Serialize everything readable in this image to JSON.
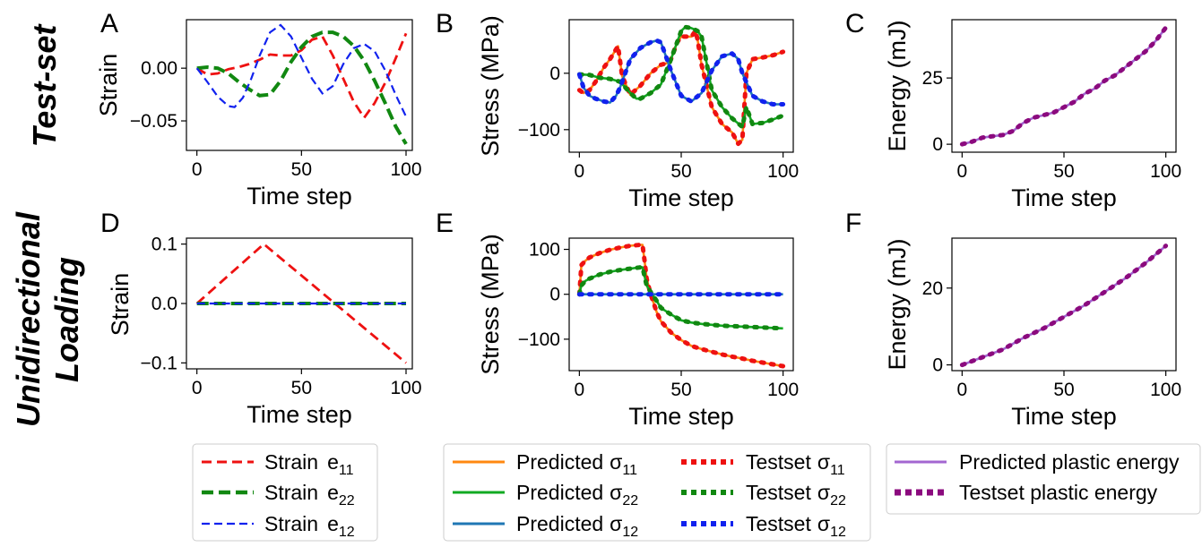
{
  "row_labels": {
    "top": "Test-set",
    "bottom_line1": "Unidirectional",
    "bottom_line2": "Loading"
  },
  "panel_letters": [
    "A",
    "B",
    "C",
    "D",
    "E",
    "F"
  ],
  "legends": {
    "strain": [
      {
        "label": "Strain",
        "symbol": "e",
        "sub": "11",
        "color": "#ee1111",
        "style": "dashed"
      },
      {
        "label": "Strain",
        "symbol": "e",
        "sub": "22",
        "color": "#118811",
        "style": "dashed-thick"
      },
      {
        "label": "Strain",
        "symbol": "e",
        "sub": "12",
        "color": "#1122ee",
        "style": "dashed-thin"
      }
    ],
    "stress_predicted": [
      {
        "label": "Predicted",
        "symbol": "σ",
        "sub": "11",
        "color": "#ff8811",
        "style": "solid"
      },
      {
        "label": "Predicted",
        "symbol": "σ",
        "sub": "22",
        "color": "#11aa22",
        "style": "solid"
      },
      {
        "label": "Predicted",
        "symbol": "σ",
        "sub": "12",
        "color": "#1f77b4",
        "style": "solid"
      }
    ],
    "stress_testset": [
      {
        "label": "Testset",
        "symbol": "σ",
        "sub": "11",
        "color": "#ee1111",
        "style": "dotted"
      },
      {
        "label": "Testset",
        "symbol": "σ",
        "sub": "22",
        "color": "#118811",
        "style": "dotted"
      },
      {
        "label": "Testset",
        "symbol": "σ",
        "sub": "12",
        "color": "#1122ee",
        "style": "dotted"
      }
    ],
    "energy": [
      {
        "label": "Predicted plastic energy",
        "color": "#a366d1",
        "style": "solid"
      },
      {
        "label": "Testset plastic energy",
        "color": "#8b0a7e",
        "style": "dotted"
      }
    ]
  },
  "chart_data": [
    {
      "panel": "A",
      "type": "line",
      "xlabel": "Time step",
      "ylabel": "Strain",
      "xlim": [
        -5,
        103
      ],
      "ylim": [
        -0.078,
        0.046
      ],
      "xticks": [
        0,
        50,
        100
      ],
      "xtick_labels": [
        "0",
        "50",
        "100"
      ],
      "yticks": [
        0.0,
        -0.05
      ],
      "ytick_labels": [
        "0.00",
        "−0.05"
      ],
      "series": [
        {
          "name": "Strain e11",
          "color": "#ee1111",
          "style": "dashed",
          "x": [
            0,
            5,
            10,
            15,
            20,
            25,
            30,
            35,
            40,
            45,
            50,
            55,
            60,
            65,
            70,
            75,
            80,
            85,
            90,
            95,
            100
          ],
          "y": [
            0,
            -0.006,
            -0.005,
            -0.001,
            0.001,
            0.004,
            0.008,
            0.013,
            0.012,
            0.012,
            0.017,
            0.027,
            0.03,
            0.012,
            -0.01,
            -0.032,
            -0.047,
            -0.033,
            -0.014,
            0.009,
            0.033
          ]
        },
        {
          "name": "Strain e22",
          "color": "#118811",
          "style": "dashed-thick",
          "x": [
            0,
            5,
            10,
            15,
            20,
            25,
            30,
            35,
            40,
            45,
            50,
            55,
            60,
            65,
            70,
            75,
            80,
            85,
            90,
            95,
            100
          ],
          "y": [
            0,
            0.001,
            0,
            -0.005,
            -0.013,
            -0.02,
            -0.026,
            -0.025,
            -0.012,
            0.006,
            0.02,
            0.03,
            0.034,
            0.034,
            0.03,
            0.021,
            0.007,
            -0.012,
            -0.033,
            -0.055,
            -0.072
          ]
        },
        {
          "name": "Strain e12",
          "color": "#1122ee",
          "style": "dashed-thin",
          "x": [
            0,
            5,
            10,
            15,
            18,
            22,
            26,
            30,
            35,
            40,
            45,
            50,
            55,
            60,
            65,
            70,
            75,
            80,
            85,
            90,
            95,
            100
          ],
          "y": [
            0,
            -0.013,
            -0.027,
            -0.036,
            -0.037,
            -0.028,
            -0.01,
            0.012,
            0.034,
            0.041,
            0.03,
            0.01,
            -0.01,
            -0.024,
            -0.017,
            0.004,
            0.019,
            0.023,
            0.016,
            -0.002,
            -0.025,
            -0.046
          ]
        }
      ]
    },
    {
      "panel": "B",
      "type": "line",
      "xlabel": "Time step",
      "ylabel": "Stress (MPa)",
      "xlim": [
        -5,
        105
      ],
      "ylim": [
        -140,
        95
      ],
      "xticks": [
        0,
        50,
        100
      ],
      "xtick_labels": [
        "0",
        "50",
        "100"
      ],
      "yticks": [
        0,
        -100
      ],
      "ytick_labels": [
        "0",
        "−100"
      ],
      "series": [
        {
          "name": "σ11",
          "color": "#ff8811",
          "dot_color": "#ee1111",
          "x": [
            0,
            2,
            5,
            8,
            12,
            15,
            19,
            21,
            25,
            30,
            35,
            40,
            43,
            45,
            48,
            50,
            55,
            57,
            58,
            60,
            65,
            70,
            75,
            78,
            80,
            82,
            85,
            90,
            95,
            100
          ],
          "y": [
            -30,
            -35,
            -30,
            -15,
            10,
            25,
            48,
            -5,
            -38,
            -22,
            0,
            15,
            18,
            25,
            55,
            65,
            65,
            75,
            60,
            15,
            -60,
            -90,
            -105,
            -125,
            -118,
            0,
            25,
            28,
            32,
            38
          ]
        },
        {
          "name": "σ22",
          "color": "#11aa22",
          "dot_color": "#118811",
          "x": [
            0,
            5,
            10,
            15,
            20,
            25,
            28,
            30,
            35,
            40,
            45,
            50,
            52,
            55,
            58,
            60,
            65,
            70,
            75,
            80,
            82,
            85,
            90,
            95,
            100
          ],
          "y": [
            -2,
            -3,
            -8,
            -10,
            -15,
            -35,
            -45,
            -45,
            -35,
            -20,
            25,
            75,
            82,
            80,
            75,
            65,
            -30,
            -60,
            -80,
            -95,
            -60,
            -90,
            -88,
            -82,
            -75
          ]
        },
        {
          "name": "σ12",
          "color": "#1f77b4",
          "dot_color": "#1122ee",
          "x": [
            0,
            2,
            5,
            8,
            12,
            15,
            18,
            20,
            25,
            30,
            35,
            38,
            40,
            45,
            50,
            55,
            60,
            65,
            70,
            75,
            78,
            80,
            85,
            90,
            95,
            100
          ],
          "y": [
            -2,
            -25,
            -40,
            -45,
            -50,
            -52,
            -40,
            -25,
            25,
            45,
            55,
            58,
            55,
            5,
            -40,
            -50,
            -35,
            5,
            30,
            35,
            25,
            0,
            -40,
            -50,
            -55,
            -55
          ]
        }
      ]
    },
    {
      "panel": "C",
      "type": "line",
      "xlabel": "Time step",
      "ylabel": "Energy (mJ)",
      "xlim": [
        -5,
        105
      ],
      "ylim": [
        -3,
        47
      ],
      "xticks": [
        0,
        50,
        100
      ],
      "xtick_labels": [
        "0",
        "50",
        "100"
      ],
      "yticks": [
        0,
        25
      ],
      "ytick_labels": [
        "0",
        "25"
      ],
      "series": [
        {
          "name": "Energy",
          "color": "#a366d1",
          "dot_color": "#8b0a7e",
          "x": [
            0,
            5,
            10,
            15,
            20,
            25,
            30,
            35,
            40,
            45,
            50,
            55,
            60,
            65,
            70,
            75,
            80,
            85,
            90,
            95,
            100
          ],
          "y": [
            0,
            1,
            2.5,
            3,
            3.5,
            5,
            8,
            10,
            11,
            12,
            14,
            16,
            19,
            21,
            24,
            26,
            29,
            32,
            35,
            39,
            44
          ]
        }
      ]
    },
    {
      "panel": "D",
      "type": "line",
      "xlabel": "Time step",
      "ylabel": "Strain",
      "xlim": [
        -5,
        103
      ],
      "ylim": [
        -0.11,
        0.11
      ],
      "xticks": [
        0,
        50,
        100
      ],
      "xtick_labels": [
        "0",
        "50",
        "100"
      ],
      "yticks": [
        0.1,
        0.0,
        -0.1
      ],
      "ytick_labels": [
        "0.1",
        "0.0",
        "−0.1"
      ],
      "series": [
        {
          "name": "Strain e11",
          "color": "#ee1111",
          "style": "dashed",
          "x": [
            0,
            32,
            100
          ],
          "y": [
            0,
            0.1,
            -0.1
          ]
        },
        {
          "name": "Strain e22",
          "color": "#118811",
          "style": "dashed-thick",
          "x": [
            0,
            100
          ],
          "y": [
            0,
            0
          ]
        },
        {
          "name": "Strain e12",
          "color": "#1122ee",
          "style": "dashed-thin",
          "x": [
            0,
            100
          ],
          "y": [
            0,
            0
          ]
        }
      ]
    },
    {
      "panel": "E",
      "type": "line",
      "xlabel": "Time step",
      "ylabel": "Stress (MPa)",
      "xlim": [
        -5,
        105
      ],
      "ylim": [
        -170,
        125
      ],
      "xticks": [
        0,
        50,
        100
      ],
      "xtick_labels": [
        "0",
        "50",
        "100"
      ],
      "yticks": [
        100,
        0,
        -100
      ],
      "ytick_labels": [
        "100",
        "0",
        "−100"
      ],
      "series": [
        {
          "name": "σ11",
          "color": "#ff8811",
          "dot_color": "#ee1111",
          "x": [
            0,
            1,
            3,
            5,
            10,
            15,
            20,
            25,
            30,
            31,
            32,
            33,
            35,
            38,
            40,
            45,
            50,
            55,
            60,
            65,
            70,
            75,
            80,
            85,
            90,
            95,
            100
          ],
          "y": [
            0,
            65,
            75,
            82,
            92,
            99,
            104,
            108,
            110,
            110,
            75,
            35,
            0,
            -40,
            -60,
            -85,
            -102,
            -115,
            -122,
            -128,
            -134,
            -139,
            -143,
            -148,
            -152,
            -156,
            -160
          ]
        },
        {
          "name": "σ22",
          "color": "#11aa22",
          "dot_color": "#118811",
          "x": [
            0,
            1,
            3,
            5,
            10,
            15,
            20,
            25,
            30,
            31,
            32,
            33,
            35,
            38,
            40,
            45,
            50,
            55,
            60,
            65,
            70,
            75,
            80,
            85,
            90,
            95,
            100
          ],
          "y": [
            0,
            20,
            30,
            35,
            44,
            50,
            54,
            57,
            60,
            60,
            40,
            20,
            5,
            -15,
            -30,
            -45,
            -58,
            -63,
            -66,
            -68,
            -70,
            -71,
            -72,
            -73,
            -74,
            -75,
            -76
          ]
        },
        {
          "name": "σ12",
          "color": "#1f77b4",
          "dot_color": "#1122ee",
          "x": [
            0,
            100
          ],
          "y": [
            0,
            0
          ]
        }
      ]
    },
    {
      "panel": "F",
      "type": "line",
      "xlabel": "Time step",
      "ylabel": "Energy (mJ)",
      "xlim": [
        -5,
        105
      ],
      "ylim": [
        -1.5,
        33
      ],
      "xticks": [
        0,
        50,
        100
      ],
      "xtick_labels": [
        "0",
        "50",
        "100"
      ],
      "yticks": [
        0,
        20
      ],
      "ytick_labels": [
        "0",
        "20"
      ],
      "series": [
        {
          "name": "Energy",
          "color": "#a366d1",
          "dot_color": "#8b0a7e",
          "x": [
            0,
            10,
            20,
            30,
            40,
            50,
            60,
            70,
            80,
            90,
            100
          ],
          "y": [
            0,
            2,
            4,
            7,
            9.5,
            12.5,
            15.5,
            19,
            22.5,
            26.5,
            31
          ]
        }
      ]
    }
  ]
}
